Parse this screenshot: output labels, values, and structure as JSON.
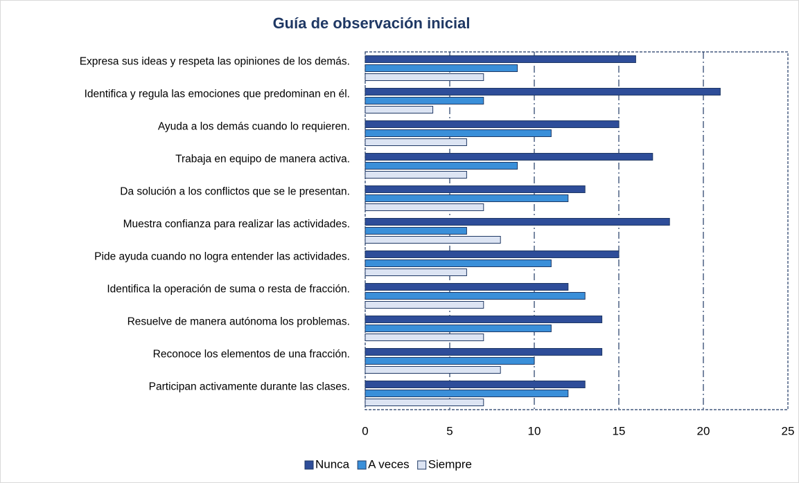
{
  "chart_data": {
    "type": "bar",
    "orientation": "horizontal",
    "title": "Guía de observación inicial",
    "categories": [
      "Expresa sus ideas y respeta las opiniones de los demás.",
      "Identifica y regula las emociones que predominan en él.",
      "Ayuda a los demás cuando lo requieren.",
      "Trabaja en equipo de manera activa.",
      "Da solución a los conflictos que se le presentan.",
      "Muestra confianza para realizar las actividades.",
      "Pide ayuda cuando no logra entender las actividades.",
      "Identifica la operación de suma o resta de fracción.",
      "Resuelve de manera autónoma los problemas.",
      "Reconoce los elementos de una fracción.",
      "Participan activamente durante las clases."
    ],
    "series": [
      {
        "name": "Nunca",
        "color": "#2e4d99",
        "values": [
          16,
          21,
          15,
          17,
          13,
          18,
          15,
          12,
          14,
          14,
          13
        ]
      },
      {
        "name": "A veces",
        "color": "#3a8fd9",
        "values": [
          9,
          7,
          11,
          9,
          12,
          6,
          11,
          13,
          11,
          10,
          12
        ]
      },
      {
        "name": "Siempre",
        "color": "#dce4f3",
        "values": [
          7,
          4,
          6,
          6,
          7,
          8,
          6,
          7,
          7,
          8,
          7
        ]
      }
    ],
    "xlim": [
      0,
      25
    ],
    "xticks": [
      0,
      5,
      10,
      15,
      20,
      25
    ],
    "grid": true,
    "legend": "bottom"
  }
}
